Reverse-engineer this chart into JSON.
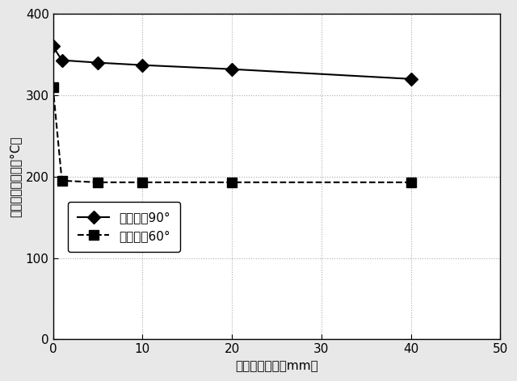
{
  "series1_x": [
    0,
    1,
    5,
    10,
    20,
    40
  ],
  "series1_y": [
    360,
    343,
    340,
    337,
    332,
    320
  ],
  "series2_x": [
    0,
    1,
    5,
    10,
    20,
    40
  ],
  "series2_y": [
    310,
    195,
    193,
    193,
    193,
    193
  ],
  "series1_label": "開口角度90°",
  "series2_label": "開口角度60°",
  "xlabel": "緩衝部材厚み（mm）",
  "ylabel": "素子加熱面温度（°C）",
  "xlim": [
    0,
    50
  ],
  "ylim": [
    0,
    400
  ],
  "xticks": [
    0,
    10,
    20,
    30,
    40,
    50
  ],
  "yticks": [
    0,
    100,
    200,
    300,
    400
  ],
  "background_color": "#e8e8e8",
  "plot_bg_color": "#ffffff",
  "line1_color": "#000000",
  "line2_color": "#000000",
  "marker1": "D",
  "marker2": "s",
  "line1_style": "-",
  "line2_style": "--",
  "line_width": 1.5,
  "marker_size": 8,
  "grid_color": "#888888",
  "grid_style": ":",
  "grid_alpha": 0.7,
  "label_fontsize": 11,
  "tick_fontsize": 11,
  "legend_fontsize": 11
}
